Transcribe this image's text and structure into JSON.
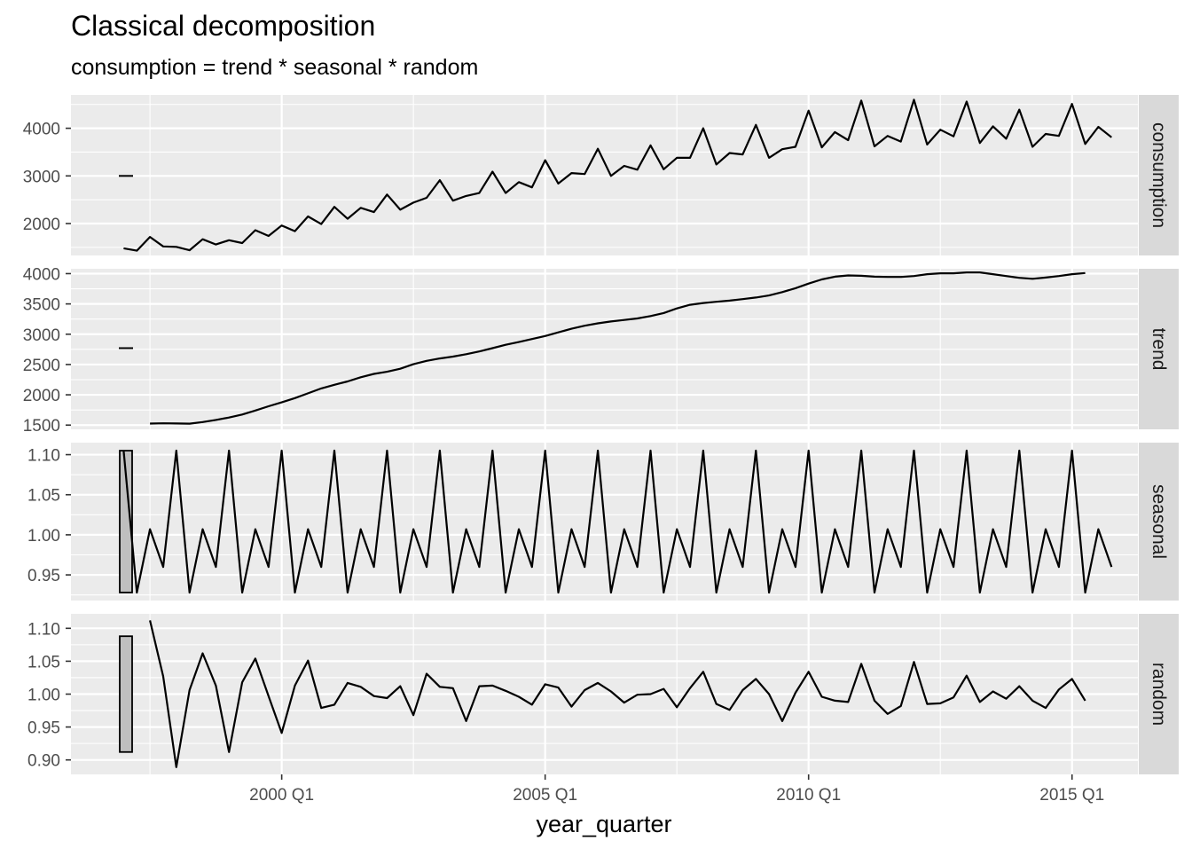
{
  "chart_data": {
    "type": "line",
    "title": "Classical decomposition",
    "subtitle": "consumption = trend * seasonal * random",
    "xlabel": "year_quarter",
    "x_start": "1996 Q1",
    "x_range": [
      "1996 Q1",
      "2016 Q2"
    ],
    "x_ticks": [
      {
        "label": "2000 Q1",
        "value": 2000.0
      },
      {
        "label": "2005 Q1",
        "value": 2005.0
      },
      {
        "label": "2010 Q1",
        "value": 2010.0
      },
      {
        "label": "2015 Q1",
        "value": 2015.0
      }
    ],
    "grid": true,
    "background": "#ebebeb",
    "strip_color": "#d9d9d9",
    "line_color": "#000000",
    "scale_bar_color": "#bfbfbf",
    "panels": [
      {
        "name": "consumption",
        "ylim": [
          1330,
          4700
        ],
        "yticks": [
          2000,
          3000,
          4000
        ],
        "yticklabels": [
          "2000",
          "3000",
          "4000"
        ],
        "scale_bar": [
          2995,
          3005
        ],
        "values": [
          null,
          null,
          null,
          null,
          1480,
          1430,
          1720,
          1520,
          1510,
          1440,
          1670,
          1560,
          1650,
          1590,
          1860,
          1740,
          1960,
          1840,
          2150,
          1990,
          2350,
          2100,
          2330,
          2240,
          2610,
          2290,
          2440,
          2540,
          2910,
          2480,
          2580,
          2640,
          3090,
          2640,
          2870,
          2760,
          3330,
          2840,
          3060,
          3040,
          3570,
          3000,
          3210,
          3130,
          3640,
          3140,
          3380,
          3380,
          4000,
          3240,
          3480,
          3450,
          4070,
          3380,
          3560,
          3610,
          4370,
          3600,
          3920,
          3750,
          4580,
          3620,
          3840,
          3720,
          4600,
          3660,
          3970,
          3830,
          4560,
          3690,
          4040,
          3780,
          4390,
          3610,
          3880,
          3840,
          4510,
          3670,
          4030,
          3810
        ]
      },
      {
        "name": "trend",
        "ylim": [
          1430,
          4080
        ],
        "yticks": [
          1500,
          2000,
          2500,
          3000,
          3500,
          4000
        ],
        "yticklabels": [
          "1500",
          "2000",
          "2500",
          "3000",
          "3500",
          "4000"
        ],
        "scale_bar": [
          2765,
          2775
        ],
        "values": [
          null,
          null,
          null,
          null,
          null,
          null,
          1525,
          1530,
          1527,
          1523,
          1550,
          1585,
          1625,
          1675,
          1740,
          1810,
          1875,
          1945,
          2025,
          2105,
          2165,
          2220,
          2290,
          2345,
          2380,
          2430,
          2505,
          2560,
          2600,
          2630,
          2670,
          2715,
          2770,
          2825,
          2870,
          2920,
          2970,
          3030,
          3090,
          3140,
          3180,
          3210,
          3235,
          3260,
          3300,
          3350,
          3425,
          3485,
          3515,
          3535,
          3555,
          3580,
          3605,
          3640,
          3695,
          3760,
          3835,
          3905,
          3950,
          3970,
          3965,
          3950,
          3945,
          3945,
          3960,
          3990,
          4005,
          4005,
          4020,
          4020,
          3990,
          3960,
          3930,
          3915,
          3935,
          3960,
          3990,
          4010,
          null,
          null
        ]
      },
      {
        "name": "seasonal",
        "ylim": [
          0.918,
          1.115
        ],
        "yticks": [
          0.95,
          1.0,
          1.05,
          1.1
        ],
        "yticklabels": [
          "0.95",
          "1.00",
          "1.05",
          "1.10"
        ],
        "scale_bar": [
          0.928,
          1.105
        ],
        "values": [
          null,
          null,
          null,
          null,
          1.105,
          0.928,
          1.007,
          0.96,
          1.105,
          0.928,
          1.007,
          0.96,
          1.105,
          0.928,
          1.007,
          0.96,
          1.105,
          0.928,
          1.007,
          0.96,
          1.105,
          0.928,
          1.007,
          0.96,
          1.105,
          0.928,
          1.007,
          0.96,
          1.105,
          0.928,
          1.007,
          0.96,
          1.105,
          0.928,
          1.007,
          0.96,
          1.105,
          0.928,
          1.007,
          0.96,
          1.105,
          0.928,
          1.007,
          0.96,
          1.105,
          0.928,
          1.007,
          0.96,
          1.105,
          0.928,
          1.007,
          0.96,
          1.105,
          0.928,
          1.007,
          0.96,
          1.105,
          0.928,
          1.007,
          0.96,
          1.105,
          0.928,
          1.007,
          0.96,
          1.105,
          0.928,
          1.007,
          0.96,
          1.105,
          0.928,
          1.007,
          0.96,
          1.105,
          0.928,
          1.007,
          0.96,
          1.105,
          0.928,
          1.007,
          0.96
        ]
      },
      {
        "name": "random",
        "ylim": [
          0.878,
          1.122
        ],
        "yticks": [
          0.9,
          0.95,
          1.0,
          1.05,
          1.1
        ],
        "yticklabels": [
          "0.90",
          "0.95",
          "1.00",
          "1.05",
          "1.10"
        ],
        "scale_bar": [
          0.912,
          1.088
        ],
        "values": [
          null,
          null,
          null,
          null,
          null,
          null,
          1.112,
          1.027,
          0.889,
          1.006,
          1.062,
          1.013,
          0.912,
          1.018,
          1.054,
          0.997,
          0.941,
          1.013,
          1.051,
          0.979,
          0.984,
          1.017,
          1.011,
          0.997,
          0.994,
          1.012,
          0.968,
          1.031,
          1.011,
          1.009,
          0.959,
          1.012,
          1.013,
          1.005,
          0.996,
          0.984,
          1.015,
          1.01,
          0.981,
          1.006,
          1.017,
          1.004,
          0.987,
          0.999,
          1.0,
          1.008,
          0.98,
          1.009,
          1.034,
          0.985,
          0.976,
          1.006,
          1.023,
          1.0,
          0.959,
          1.002,
          1.034,
          0.996,
          0.99,
          0.988,
          1.046,
          0.99,
          0.97,
          0.982,
          1.049,
          0.985,
          0.986,
          0.995,
          1.028,
          0.988,
          1.004,
          0.993,
          1.012,
          0.99,
          0.979,
          1.007,
          1.023,
          0.99,
          null,
          null
        ]
      }
    ]
  }
}
